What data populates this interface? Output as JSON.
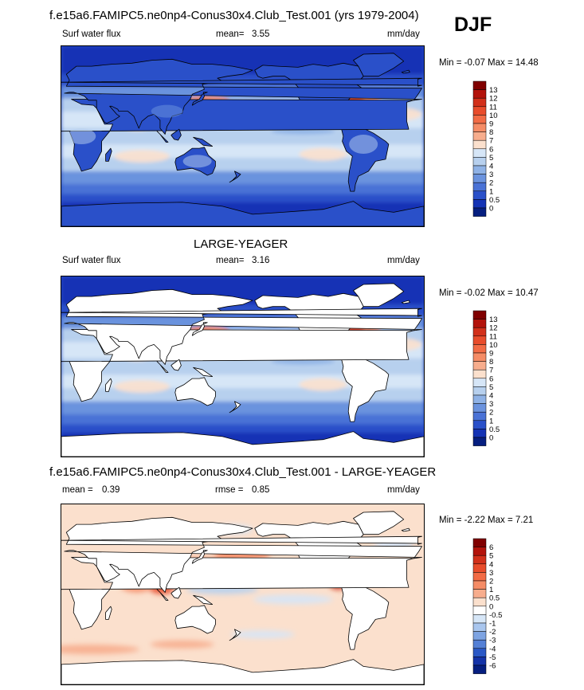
{
  "header": {
    "title": "f.e15a6.FAMIPC5.ne0np4-Conus30x4.Club_Test.001 (yrs 1979-2004)",
    "season": "DJF"
  },
  "panels": [
    {
      "title": "",
      "variable": "Surf water flux",
      "stat_label": "mean=",
      "stat_value": "3.55",
      "stat2_label": "",
      "stat2_value": "",
      "units": "mm/day",
      "minmax": "Min = -0.07 Max = 14.48",
      "levels": [
        "13",
        "12",
        "11",
        "10",
        "9",
        "8",
        "7",
        "6",
        "5",
        "4",
        "3",
        "2",
        "1",
        "0.5",
        "0"
      ],
      "colors": [
        "#800000",
        "#b3130b",
        "#d2301a",
        "#e84c2b",
        "#f26b45",
        "#f58c66",
        "#f7ad8d",
        "#fbe0cd",
        "#d6e6f7",
        "#b7d0ee",
        "#8fb2e6",
        "#6b93de",
        "#4a72d6",
        "#2a50c9",
        "#1433b5",
        "#061f80"
      ],
      "type": "model"
    },
    {
      "title": "LARGE-YEAGER",
      "variable": "Surf water flux",
      "stat_label": "mean=",
      "stat_value": "3.16",
      "stat2_label": "",
      "stat2_value": "",
      "units": "mm/day",
      "minmax": "Min = -0.02 Max = 10.47",
      "levels": [
        "13",
        "12",
        "11",
        "10",
        "9",
        "8",
        "7",
        "6",
        "5",
        "4",
        "3",
        "2",
        "1",
        "0.5",
        "0"
      ],
      "colors": [
        "#800000",
        "#b3130b",
        "#d2301a",
        "#e84c2b",
        "#f26b45",
        "#f58c66",
        "#f7ad8d",
        "#fbe0cd",
        "#d6e6f7",
        "#b7d0ee",
        "#8fb2e6",
        "#6b93de",
        "#4a72d6",
        "#2a50c9",
        "#1433b5",
        "#061f80"
      ],
      "type": "obs"
    },
    {
      "title": "f.e15a6.FAMIPC5.ne0np4-Conus30x4.Club_Test.001 - LARGE-YEAGER",
      "variable": "",
      "stat_label": "mean =",
      "stat_value": "0.39",
      "stat2_label": "rmse =",
      "stat2_value": "0.85",
      "units": "mm/day",
      "minmax": "Min = -2.22 Max = 7.21",
      "levels": [
        "6",
        "5",
        "4",
        "3",
        "2",
        "1",
        "0.5",
        "0",
        "-0.5",
        "-1",
        "-2",
        "-3",
        "-4",
        "-5",
        "-6"
      ],
      "colors": [
        "#800000",
        "#b3130b",
        "#d2301a",
        "#e84c2b",
        "#f26b45",
        "#f58c66",
        "#f7ad8d",
        "#fbe0cd",
        "#ffffff",
        "#d6e6f7",
        "#a9c6ee",
        "#7ea4e2",
        "#5480d6",
        "#2a58c6",
        "#1433a8",
        "#061f80"
      ],
      "type": "diff"
    }
  ]
}
